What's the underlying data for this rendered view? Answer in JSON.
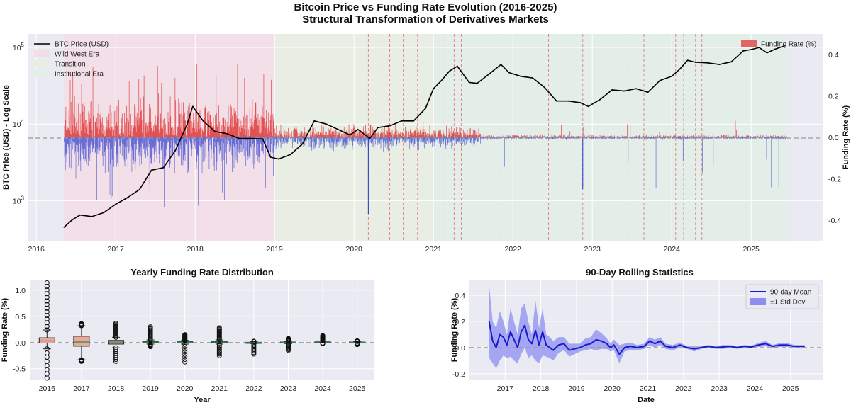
{
  "figure": {
    "title_line1": "Bitcoin Price vs Funding Rate Evolution (2016-2025)",
    "title_line2": "Structural Transformation of Derivatives Markets"
  },
  "chart_data": [
    {
      "id": "main",
      "type": "line",
      "title": "",
      "ylabel_left": "BTC Price (USD) - Log Scale",
      "ylabel_right": "Funding Rate (%)",
      "xlabel": "",
      "x_ticks": [
        "2016",
        "2017",
        "2018",
        "2019",
        "2020",
        "2021",
        "2022",
        "2023",
        "2024",
        "2025"
      ],
      "x_range": [
        2015.9,
        2025.9
      ],
      "y_left_scale": "log",
      "y_left_range": [
        300,
        150000
      ],
      "y_left_ticks": [
        {
          "value": 1000,
          "base": "10",
          "exp": "3"
        },
        {
          "value": 10000,
          "base": "10",
          "exp": "4"
        },
        {
          "value": 100000,
          "base": "10",
          "exp": "5"
        }
      ],
      "y_right_range": [
        -0.5,
        0.5
      ],
      "y_right_ticks": [
        "-0.4",
        "-0.2",
        "0.0",
        "0.2",
        "0.4"
      ],
      "grid": true,
      "legend_left": [
        {
          "label": "BTC Price (USD)",
          "color": "#000000",
          "kind": "line"
        },
        {
          "label": "Wild West Era",
          "color": "#f3dde6",
          "kind": "patch"
        },
        {
          "label": "Transition",
          "color": "#e8efe0",
          "kind": "patch"
        },
        {
          "label": "Institutional Era",
          "color": "#e3efe6",
          "kind": "patch"
        }
      ],
      "legend_right": [
        {
          "label": "Funding Rate (%)",
          "color": "#e06666",
          "kind": "patch"
        }
      ],
      "eras": [
        {
          "name": "Wild West Era",
          "start": 2016.35,
          "end": 2019.0,
          "color": "#f3dde6"
        },
        {
          "name": "Transition",
          "start": 2019.0,
          "end": 2021.0,
          "color": "#e8efe0"
        },
        {
          "name": "Institutional Era",
          "start": 2021.0,
          "end": 2025.45,
          "color": "#e3efe6"
        }
      ],
      "event_lines": [
        2020.18,
        2020.35,
        2020.45,
        2020.62,
        2020.8,
        2021.12,
        2021.26,
        2021.35,
        2021.85,
        2022.45,
        2022.88,
        2023.45,
        2023.65,
        2024.05,
        2024.15,
        2024.3,
        2024.38
      ],
      "series": [
        {
          "name": "BTC Price (USD)",
          "color": "#000000",
          "x": [
            2016.35,
            2016.45,
            2016.55,
            2016.7,
            2016.85,
            2017.0,
            2017.15,
            2017.3,
            2017.45,
            2017.6,
            2017.75,
            2017.9,
            2017.97,
            2018.1,
            2018.25,
            2018.4,
            2018.55,
            2018.7,
            2018.85,
            2018.95,
            2019.05,
            2019.2,
            2019.35,
            2019.5,
            2019.65,
            2019.8,
            2019.95,
            2020.05,
            2020.2,
            2020.3,
            2020.45,
            2020.6,
            2020.75,
            2020.9,
            2021.0,
            2021.1,
            2021.2,
            2021.3,
            2021.45,
            2021.55,
            2021.7,
            2021.85,
            2021.95,
            2022.1,
            2022.25,
            2022.4,
            2022.55,
            2022.7,
            2022.85,
            2022.95,
            2023.1,
            2023.25,
            2023.4,
            2023.55,
            2023.7,
            2023.85,
            2024.0,
            2024.1,
            2024.2,
            2024.3,
            2024.45,
            2024.6,
            2024.75,
            2024.9,
            2025.0,
            2025.1,
            2025.2,
            2025.3,
            2025.42
          ],
          "values": [
            450,
            560,
            650,
            620,
            700,
            900,
            1100,
            1400,
            2500,
            2700,
            4500,
            10000,
            17000,
            11000,
            8000,
            7500,
            6500,
            6500,
            6400,
            3700,
            3500,
            4000,
            5500,
            11000,
            10000,
            8500,
            7200,
            8500,
            6500,
            9000,
            9500,
            11000,
            11000,
            16000,
            29000,
            37000,
            49000,
            57000,
            35000,
            34000,
            45000,
            60000,
            47000,
            42000,
            40000,
            30000,
            20000,
            20000,
            19000,
            17000,
            21000,
            28000,
            27000,
            29000,
            26000,
            37000,
            42000,
            52000,
            68000,
            64000,
            63000,
            60000,
            65000,
            90000,
            94000,
            100000,
            85000,
            95000,
            105000
          ]
        }
      ],
      "funding_rate": {
        "color_positive": "#e02b2b",
        "color_negative": "#2233cc",
        "note_values": "approximate envelope of percent funding rate"
      }
    },
    {
      "id": "box",
      "type": "box",
      "title": "Yearly Funding Rate Distribution",
      "xlabel": "Year",
      "ylabel": "Funding Rate (%)",
      "categories": [
        "2016",
        "2017",
        "2018",
        "2019",
        "2020",
        "2021",
        "2022",
        "2023",
        "2024",
        "2025"
      ],
      "y_range": [
        -0.72,
        1.2
      ],
      "y_ticks": [
        "-0.5",
        "0.0",
        "0.5",
        "1.0"
      ],
      "boxes": [
        {
          "q1": -0.01,
          "median": 0.03,
          "q3": 0.09,
          "whisk_lo": -0.12,
          "whisk_hi": 0.24,
          "out_lo": -0.68,
          "out_hi": 1.14
        },
        {
          "q1": -0.07,
          "median": 0.01,
          "q3": 0.12,
          "whisk_lo": -0.33,
          "whisk_hi": 0.32,
          "out_lo": -0.36,
          "out_hi": 0.36
        },
        {
          "q1": -0.03,
          "median": 0.01,
          "q3": 0.04,
          "whisk_lo": -0.1,
          "whisk_hi": 0.1,
          "out_lo": -0.36,
          "out_hi": 0.37
        },
        {
          "q1": -0.005,
          "median": 0.01,
          "q3": 0.02,
          "whisk_lo": -0.03,
          "whisk_hi": 0.05,
          "out_lo": -0.08,
          "out_hi": 0.3
        },
        {
          "q1": -0.005,
          "median": 0.005,
          "q3": 0.015,
          "whisk_lo": -0.03,
          "whisk_hi": 0.04,
          "out_lo": -0.37,
          "out_hi": 0.15
        },
        {
          "q1": -0.005,
          "median": 0.01,
          "q3": 0.02,
          "whisk_lo": -0.03,
          "whisk_hi": 0.05,
          "out_lo": -0.25,
          "out_hi": 0.28
        },
        {
          "q1": -0.01,
          "median": 0.0,
          "q3": 0.005,
          "whisk_lo": -0.02,
          "whisk_hi": 0.02,
          "out_lo": -0.22,
          "out_hi": 0.02
        },
        {
          "q1": -0.005,
          "median": 0.005,
          "q3": 0.01,
          "whisk_lo": -0.02,
          "whisk_hi": 0.02,
          "out_lo": -0.15,
          "out_hi": 0.08
        },
        {
          "q1": 0.0,
          "median": 0.01,
          "q3": 0.015,
          "whisk_lo": -0.01,
          "whisk_hi": 0.03,
          "out_lo": -0.02,
          "out_hi": 0.13
        },
        {
          "q1": -0.005,
          "median": 0.005,
          "q3": 0.01,
          "whisk_lo": -0.01,
          "whisk_hi": 0.02,
          "out_lo": -0.04,
          "out_hi": 0.03
        }
      ],
      "box_color": "#e9a898",
      "grid": true
    },
    {
      "id": "rolling",
      "type": "line",
      "title": "90-Day Rolling Statistics",
      "xlabel": "Date",
      "ylabel": "Funding Rate (%)",
      "x_ticks": [
        "2017",
        "2018",
        "2019",
        "2020",
        "2021",
        "2022",
        "2023",
        "2024",
        "2025"
      ],
      "x_range": [
        2016.0,
        2025.9
      ],
      "y_range": [
        -0.25,
        0.52
      ],
      "y_ticks": [
        "-0.2",
        "0.0",
        "0.2",
        "0.4"
      ],
      "legend": [
        {
          "label": "90-day Mean",
          "color": "#1a1acc",
          "kind": "line"
        },
        {
          "label": "±1 Std Dev",
          "color": "#8c8ff0",
          "kind": "patch"
        }
      ],
      "legend_position": "top-right",
      "series": [
        {
          "name": "90-day Mean",
          "color": "#1a1acc",
          "x": [
            2016.55,
            2016.65,
            2016.75,
            2016.85,
            2016.95,
            2017.05,
            2017.15,
            2017.25,
            2017.35,
            2017.45,
            2017.55,
            2017.65,
            2017.75,
            2017.85,
            2017.95,
            2018.05,
            2018.15,
            2018.25,
            2018.35,
            2018.5,
            2018.65,
            2018.8,
            2018.95,
            2019.1,
            2019.25,
            2019.4,
            2019.55,
            2019.7,
            2019.85,
            2019.95,
            2020.05,
            2020.2,
            2020.35,
            2020.5,
            2020.7,
            2020.9,
            2021.05,
            2021.2,
            2021.35,
            2021.5,
            2021.7,
            2021.9,
            2022.1,
            2022.3,
            2022.5,
            2022.7,
            2022.9,
            2023.1,
            2023.3,
            2023.5,
            2023.7,
            2023.9,
            2024.1,
            2024.3,
            2024.5,
            2024.7,
            2024.9,
            2025.1,
            2025.3,
            2025.4
          ],
          "values": [
            0.2,
            0.05,
            0.0,
            0.1,
            0.08,
            0.02,
            0.12,
            0.06,
            0.0,
            0.12,
            0.17,
            0.06,
            0.03,
            0.13,
            0.02,
            0.12,
            0.02,
            0.0,
            -0.02,
            0.02,
            0.03,
            -0.02,
            -0.01,
            0.0,
            0.02,
            0.03,
            0.06,
            0.05,
            0.03,
            0.0,
            0.02,
            -0.05,
            0.0,
            0.01,
            0.0,
            0.01,
            0.05,
            0.03,
            0.05,
            0.01,
            0.0,
            0.02,
            0.0,
            -0.01,
            0.0,
            0.01,
            0.0,
            0.005,
            0.01,
            0.0,
            0.01,
            0.005,
            0.02,
            0.03,
            0.01,
            0.02,
            0.02,
            0.01,
            0.01,
            0.01
          ]
        },
        {
          "name": "±1 Std Dev",
          "color": "#8c8ff0",
          "x": [
            2016.55,
            2016.65,
            2016.75,
            2016.85,
            2016.95,
            2017.05,
            2017.15,
            2017.25,
            2017.35,
            2017.45,
            2017.55,
            2017.65,
            2017.75,
            2017.85,
            2017.95,
            2018.05,
            2018.15,
            2018.25,
            2018.35,
            2018.5,
            2018.65,
            2018.8,
            2018.95,
            2019.1,
            2019.25,
            2019.4,
            2019.55,
            2019.7,
            2019.85,
            2019.95,
            2020.05,
            2020.2,
            2020.35,
            2020.5,
            2020.7,
            2020.9,
            2021.05,
            2021.2,
            2021.35,
            2021.5,
            2021.7,
            2021.9,
            2022.1,
            2022.3,
            2022.5,
            2022.7,
            2022.9,
            2023.1,
            2023.3,
            2023.5,
            2023.7,
            2023.9,
            2024.1,
            2024.3,
            2024.5,
            2024.7,
            2024.9,
            2025.1,
            2025.3,
            2025.4
          ],
          "upper": [
            0.48,
            0.2,
            0.15,
            0.28,
            0.2,
            0.1,
            0.3,
            0.2,
            0.1,
            0.3,
            0.34,
            0.2,
            0.1,
            0.36,
            0.15,
            0.3,
            0.1,
            0.08,
            0.05,
            0.08,
            0.08,
            0.03,
            0.03,
            0.03,
            0.07,
            0.08,
            0.14,
            0.11,
            0.07,
            0.03,
            0.06,
            0.02,
            0.03,
            0.04,
            0.02,
            0.03,
            0.08,
            0.06,
            0.08,
            0.03,
            0.02,
            0.04,
            0.01,
            0.01,
            0.01,
            0.02,
            0.01,
            0.02,
            0.02,
            0.01,
            0.02,
            0.015,
            0.035,
            0.05,
            0.02,
            0.035,
            0.035,
            0.02,
            0.02,
            0.02
          ],
          "lower": [
            -0.08,
            -0.12,
            -0.16,
            -0.1,
            -0.06,
            -0.08,
            -0.07,
            -0.1,
            -0.12,
            -0.05,
            0.0,
            -0.08,
            -0.06,
            -0.1,
            -0.12,
            -0.06,
            -0.07,
            -0.08,
            -0.1,
            -0.04,
            -0.02,
            -0.07,
            -0.05,
            -0.03,
            -0.02,
            -0.01,
            -0.02,
            -0.01,
            -0.01,
            -0.03,
            -0.02,
            -0.12,
            -0.03,
            -0.02,
            -0.02,
            -0.01,
            0.02,
            0.0,
            0.02,
            -0.01,
            -0.02,
            0.0,
            -0.01,
            -0.03,
            -0.01,
            0.0,
            -0.01,
            -0.01,
            0.0,
            -0.01,
            0.0,
            -0.005,
            0.005,
            0.01,
            0.0,
            0.005,
            0.005,
            0.0,
            0.0,
            0.0
          ]
        }
      ],
      "grid": true
    }
  ]
}
